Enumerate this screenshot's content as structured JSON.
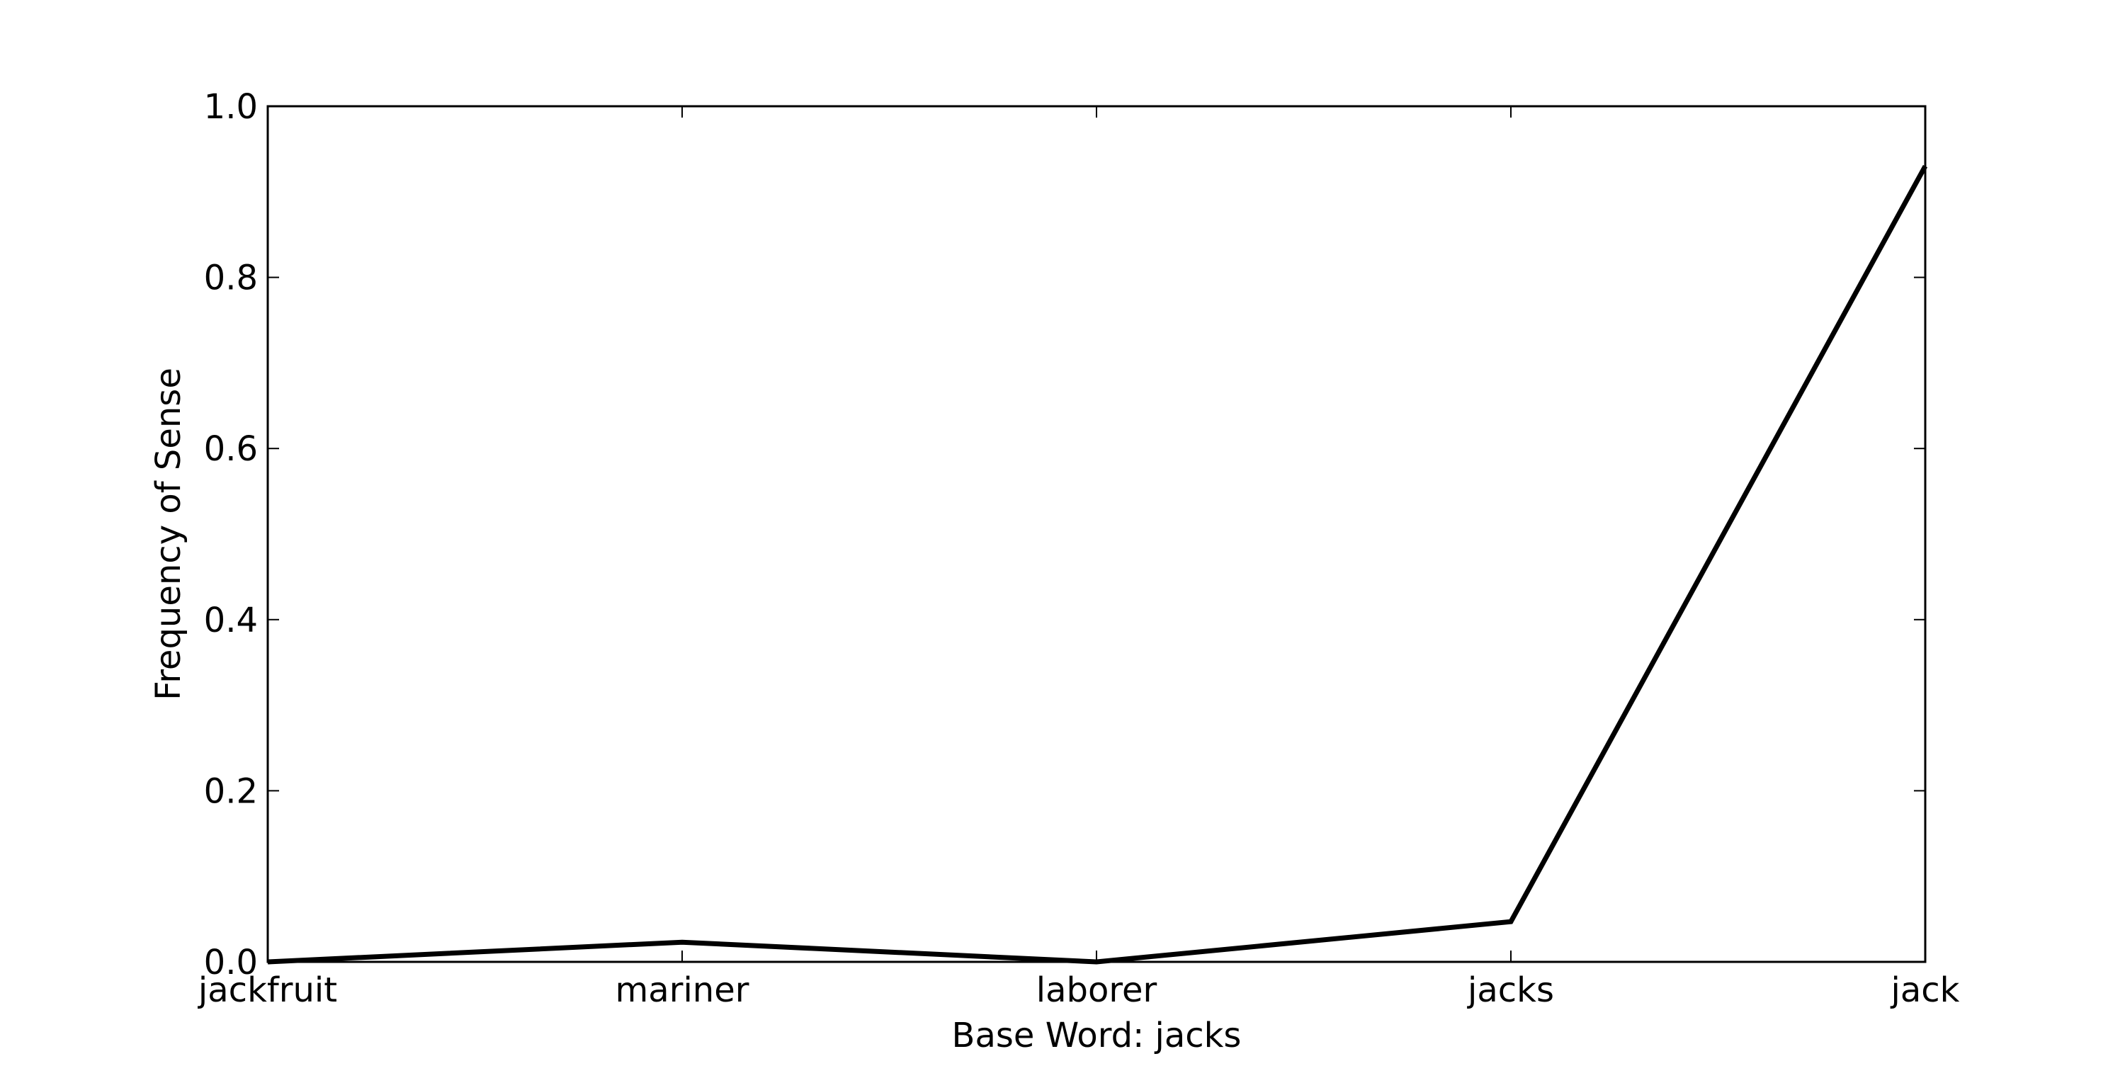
{
  "chart_data": {
    "type": "line",
    "categories": [
      "jackfruit",
      "mariner",
      "laborer",
      "jacks",
      "jack"
    ],
    "series": [
      {
        "values": [
          0.0,
          0.023,
          0.0,
          0.047,
          0.93
        ]
      }
    ],
    "xlabel": "Base Word: jacks",
    "ylabel": "Frequency of Sense",
    "ylim": [
      0,
      1.0
    ],
    "yticks": [
      "0.0",
      "0.2",
      "0.4",
      "0.6",
      "0.8",
      "1.0"
    ],
    "grid": false,
    "line_color": "#000000"
  }
}
